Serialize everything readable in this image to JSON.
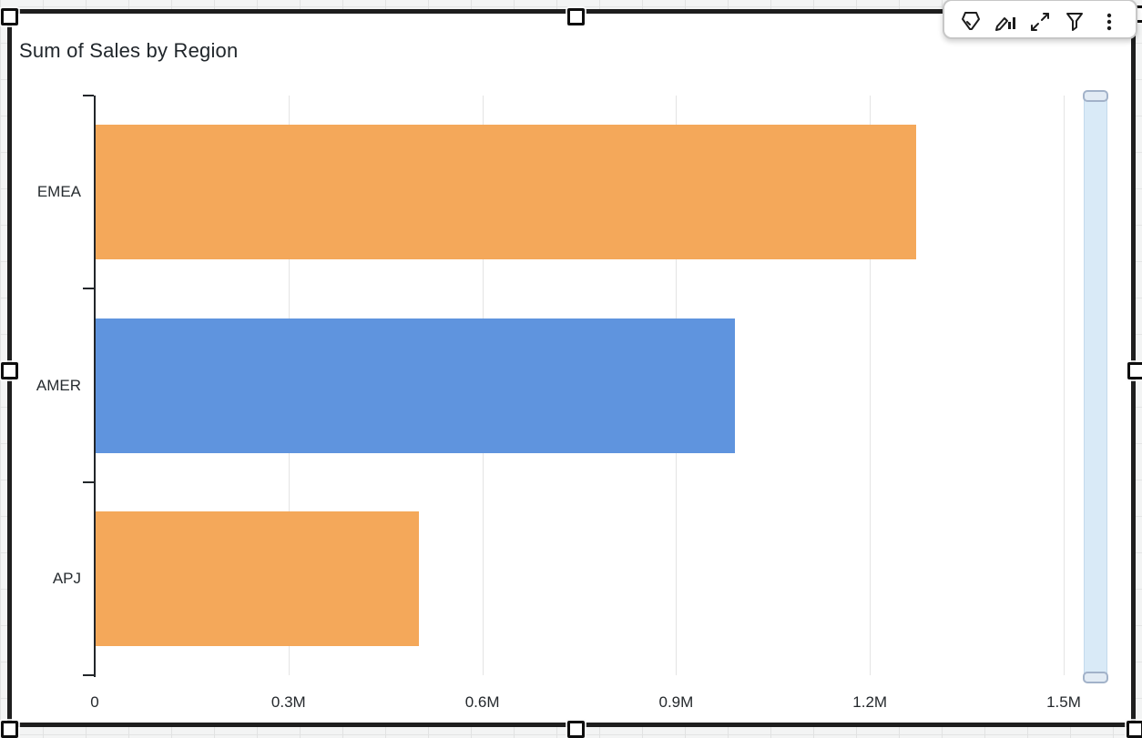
{
  "widget": {
    "title": "Sum of Sales by Region"
  },
  "toolbar": {
    "icons": [
      {
        "name": "format-badge-icon"
      },
      {
        "name": "edit-visual-icon"
      },
      {
        "name": "maximize-icon"
      },
      {
        "name": "filter-icon"
      },
      {
        "name": "menu-icon"
      }
    ]
  },
  "chart_data": {
    "type": "bar",
    "orientation": "horizontal",
    "title": "Sum of Sales by Region",
    "categories": [
      "EMEA",
      "AMER",
      "APJ"
    ],
    "values": [
      1270000,
      990000,
      500000
    ],
    "bar_colors": [
      "#F4A85A",
      "#5F94DE",
      "#F4A85A"
    ],
    "x_ticks": [
      "0",
      "0.3M",
      "0.6M",
      "0.9M",
      "1.2M",
      "1.5M"
    ],
    "x_tick_values": [
      0,
      300000,
      600000,
      900000,
      1200000,
      1500000
    ],
    "xlim": [
      0,
      1500000
    ],
    "grid": true,
    "legend": "none"
  },
  "colors": {
    "bar_orange": "#F4A85A",
    "bar_blue": "#5F94DE",
    "axis": "#22262A",
    "gridline": "#E4E4E4",
    "slider_fill": "#D9EAF7",
    "selection_border": "#1E1E1E"
  }
}
